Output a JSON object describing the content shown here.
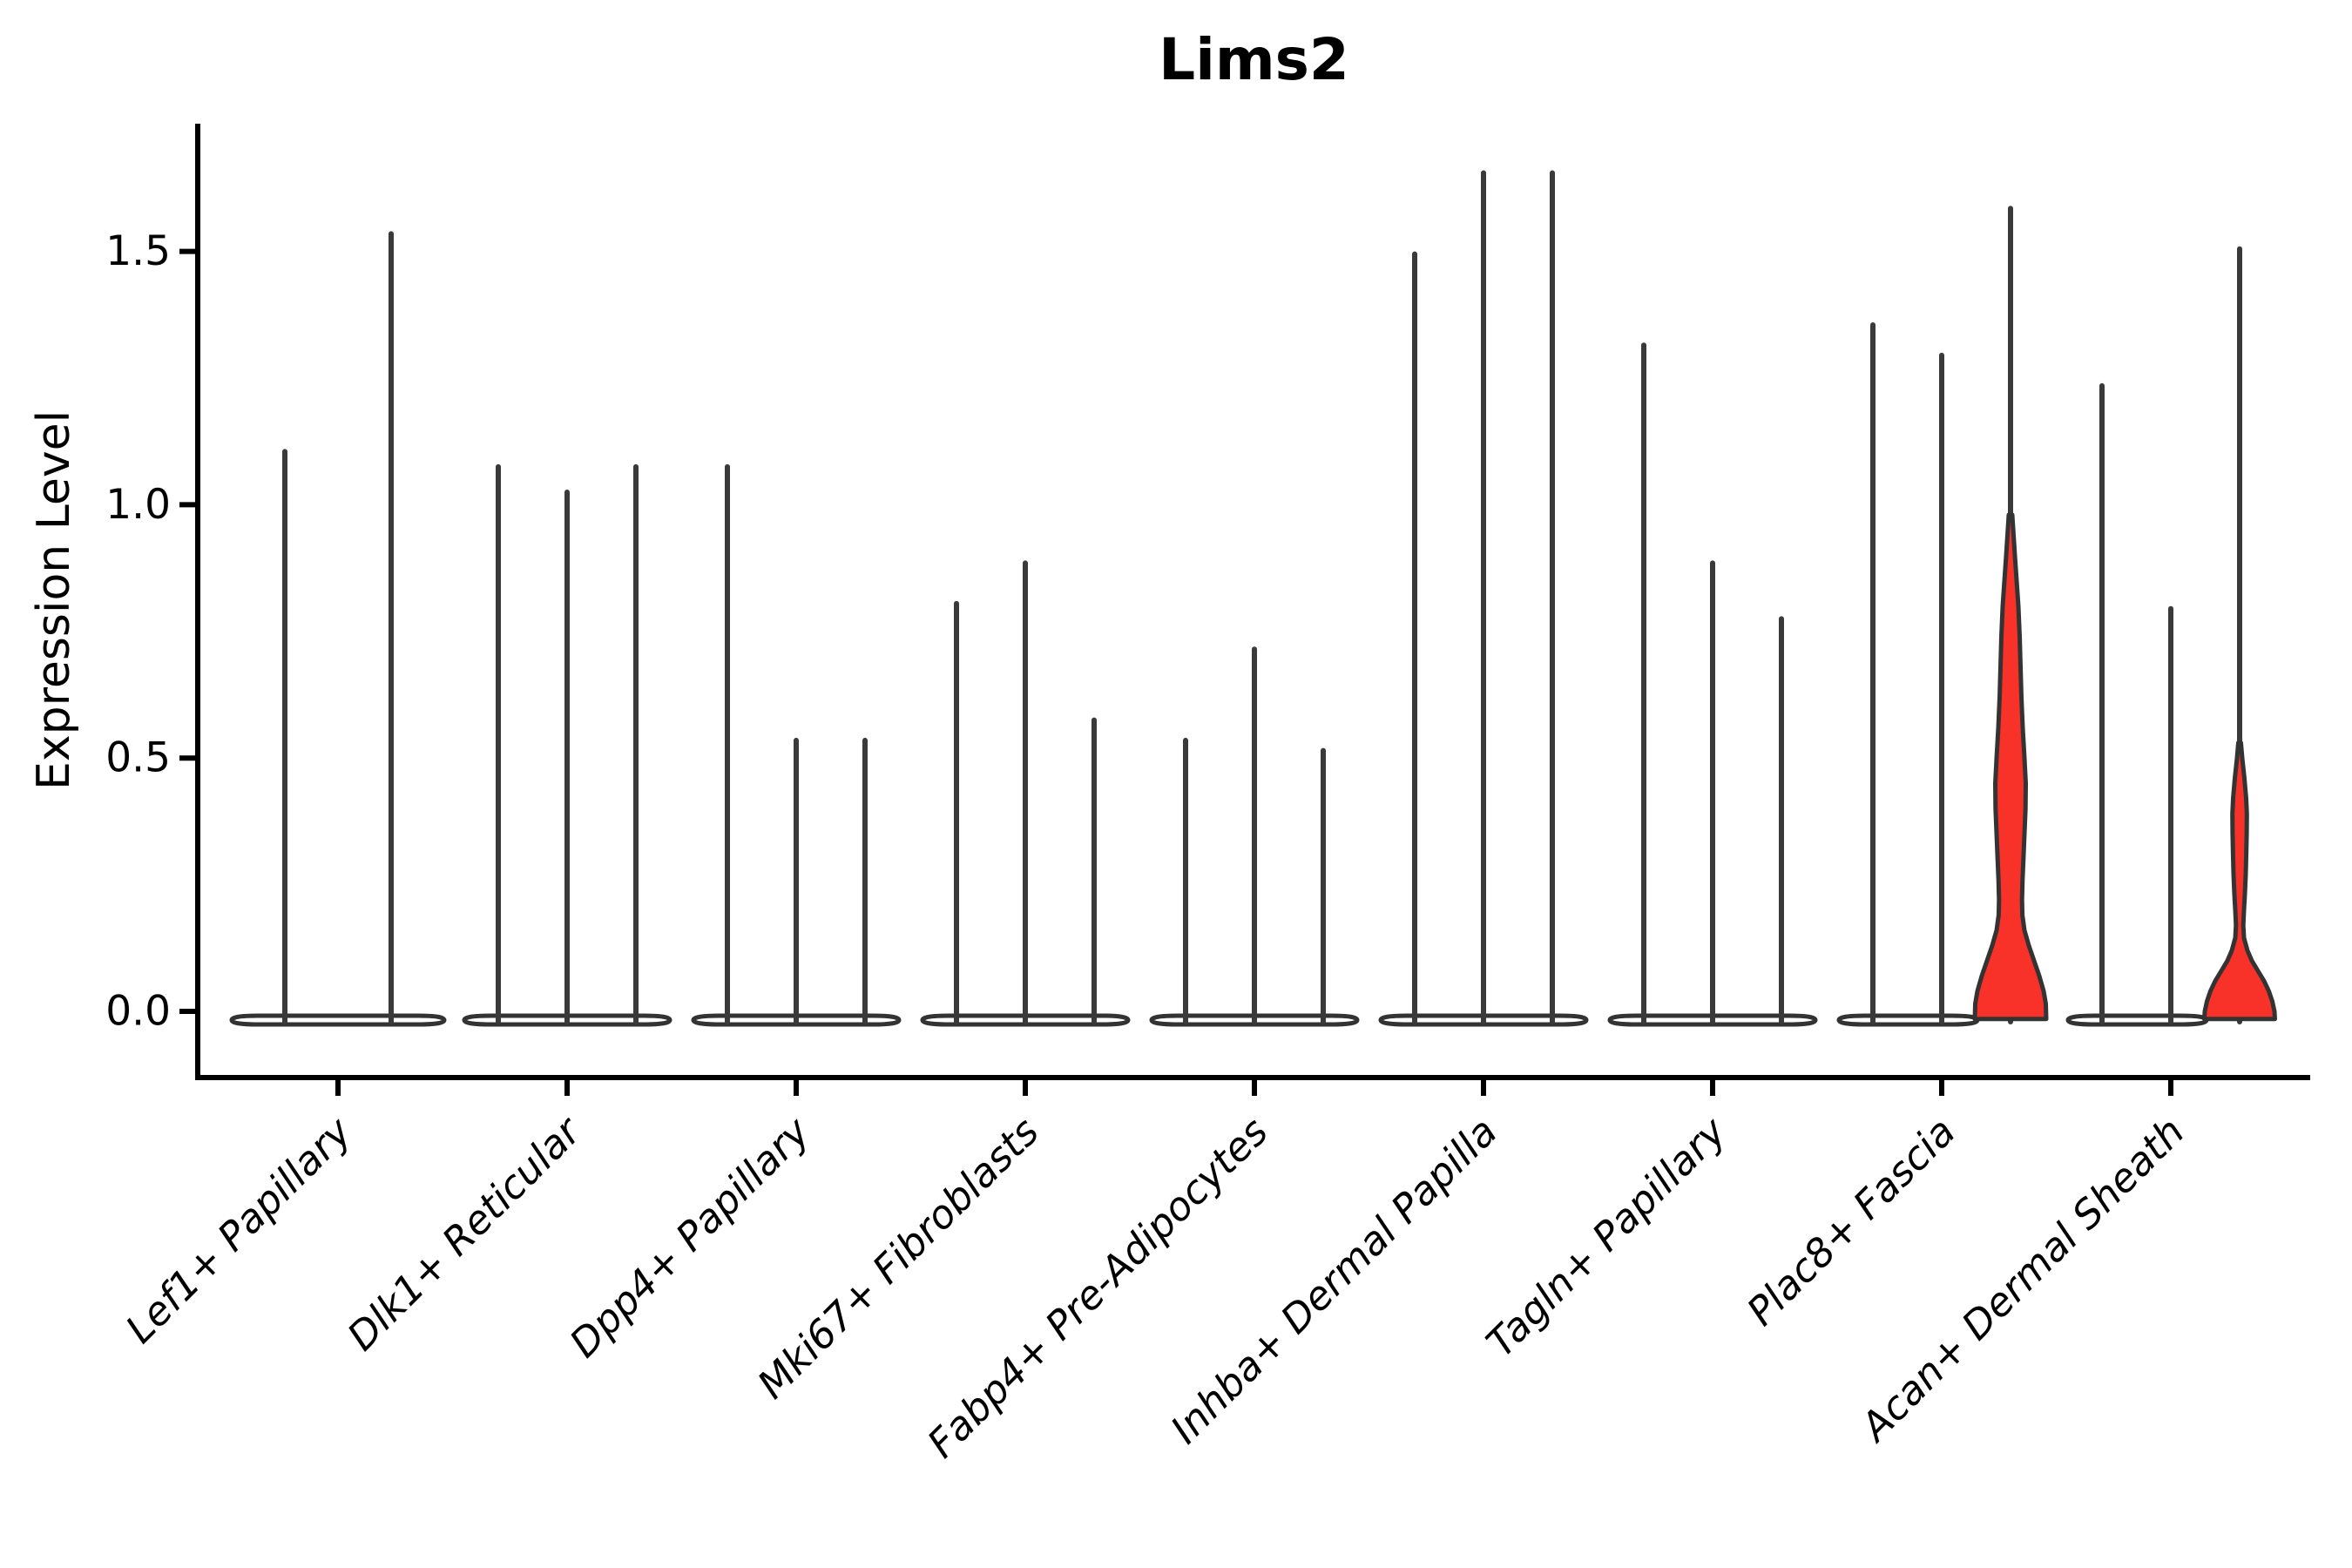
{
  "title": "Lims2",
  "colors": {
    "violin_outline": "#333333",
    "spike": "#3a3a3a",
    "highlight_fill": "#f83228",
    "axis": "#000000",
    "text": "#000000"
  },
  "chart_data": {
    "type": "violin",
    "title": "Lims2",
    "xlabel": "",
    "ylabel": "Expression Level",
    "ylim": [
      0,
      1.75
    ],
    "yticks": [
      0.0,
      0.5,
      1.0,
      1.5
    ],
    "yticklabels": [
      "0.0",
      "0.5",
      "1.0",
      "1.5"
    ],
    "legend": "none",
    "grid": false,
    "categories": [
      "Lef1+ Papillary",
      "Dlk1+ Reticular",
      "Dpp4+ Papillary",
      "Mki67+ Fibroblasts",
      "Fabp4+ Pre-Adipocytes",
      "Inhba+ Dermal Papilla",
      "Tagln+ Papillary",
      "Plac8+ Fascia",
      "Acan+ Dermal Sheath"
    ],
    "description": "Most cells have expression 0 (flat violin bases); thin spikes mark the maximum expression per violin; two violins are highlighted red with visible density bodies.",
    "groups": [
      {
        "category": "Lef1+ Papillary",
        "violins": [
          {
            "max_expression": 1.11,
            "highlighted": false
          },
          {
            "max_expression": 1.54,
            "highlighted": false
          }
        ]
      },
      {
        "category": "Dlk1+ Reticular",
        "violins": [
          {
            "max_expression": 1.08,
            "highlighted": false
          },
          {
            "max_expression": 1.03,
            "highlighted": false
          },
          {
            "max_expression": 1.08,
            "highlighted": false
          }
        ]
      },
      {
        "category": "Dpp4+ Papillary",
        "violins": [
          {
            "max_expression": 1.08,
            "highlighted": false
          },
          {
            "max_expression": 0.54,
            "highlighted": false
          },
          {
            "max_expression": 0.54,
            "highlighted": false
          }
        ]
      },
      {
        "category": "Mki67+ Fibroblasts",
        "violins": [
          {
            "max_expression": 0.81,
            "highlighted": false
          },
          {
            "max_expression": 0.89,
            "highlighted": false
          },
          {
            "max_expression": 0.58,
            "highlighted": false
          }
        ]
      },
      {
        "category": "Fabp4+ Pre-Adipocytes",
        "violins": [
          {
            "max_expression": 0.54,
            "highlighted": false
          },
          {
            "max_expression": 0.72,
            "highlighted": false
          },
          {
            "max_expression": 0.52,
            "highlighted": false
          }
        ]
      },
      {
        "category": "Inhba+ Dermal Papilla",
        "violins": [
          {
            "max_expression": 1.5,
            "highlighted": false
          },
          {
            "max_expression": 1.66,
            "highlighted": false
          },
          {
            "max_expression": 1.66,
            "highlighted": false
          }
        ]
      },
      {
        "category": "Tagln+ Papillary",
        "violins": [
          {
            "max_expression": 1.32,
            "highlighted": false
          },
          {
            "max_expression": 0.89,
            "highlighted": false
          },
          {
            "max_expression": 0.78,
            "highlighted": false
          }
        ]
      },
      {
        "category": "Plac8+ Fascia",
        "violins": [
          {
            "max_expression": 1.36,
            "highlighted": false
          },
          {
            "max_expression": 1.3,
            "highlighted": false
          },
          {
            "max_expression": 1.59,
            "highlighted": true,
            "profile_key": "plac8_fascia_red"
          }
        ]
      },
      {
        "category": "Acan+ Dermal Sheath",
        "violins": [
          {
            "max_expression": 1.24,
            "highlighted": false
          },
          {
            "max_expression": 0.8,
            "highlighted": false
          },
          {
            "max_expression": 1.51,
            "highlighted": true,
            "profile_key": "acan_dermal_sheath_red"
          }
        ]
      }
    ],
    "highlight_profiles": {
      "plac8_fascia_red": [
        [
          0.98,
          2
        ],
        [
          0.94,
          3.5
        ],
        [
          0.9,
          5
        ],
        [
          0.85,
          7
        ],
        [
          0.8,
          9
        ],
        [
          0.74,
          10.5
        ],
        [
          0.68,
          11.5
        ],
        [
          0.62,
          12.5
        ],
        [
          0.56,
          14
        ],
        [
          0.5,
          16
        ],
        [
          0.45,
          17.5
        ],
        [
          0.4,
          17.2
        ],
        [
          0.35,
          16
        ],
        [
          0.3,
          14.8
        ],
        [
          0.26,
          13.8
        ],
        [
          0.22,
          13.2
        ],
        [
          0.19,
          13.6
        ],
        [
          0.16,
          16
        ],
        [
          0.13,
          21
        ],
        [
          0.1,
          27
        ],
        [
          0.07,
          33
        ],
        [
          0.04,
          38
        ],
        [
          0.015,
          40.5
        ],
        [
          -0.015,
          41
        ]
      ],
      "acan_dermal_sheath_red": [
        [
          0.53,
          1.5
        ],
        [
          0.5,
          3
        ],
        [
          0.46,
          5.5
        ],
        [
          0.42,
          7.5
        ],
        [
          0.39,
          8.3
        ],
        [
          0.35,
          8.1
        ],
        [
          0.31,
          7.6
        ],
        [
          0.27,
          7
        ],
        [
          0.23,
          6
        ],
        [
          0.2,
          5
        ],
        [
          0.17,
          4.2
        ],
        [
          0.145,
          5
        ],
        [
          0.12,
          9
        ],
        [
          0.1,
          14
        ],
        [
          0.08,
          21
        ],
        [
          0.06,
          28
        ],
        [
          0.04,
          33.5
        ],
        [
          0.02,
          37.5
        ],
        [
          0.0,
          40
        ],
        [
          -0.015,
          40.5
        ]
      ]
    }
  }
}
